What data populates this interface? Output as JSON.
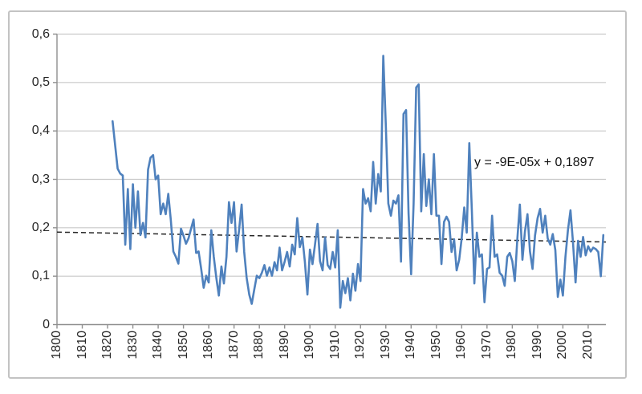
{
  "chart_data": {
    "type": "line",
    "title": "",
    "legend": false,
    "grid": true,
    "x_axis": {
      "min": 1800,
      "max": 2017,
      "tick_step": 10,
      "tick_labels": [
        "1800",
        "1810",
        "1820",
        "1830",
        "1840",
        "1850",
        "1860",
        "1870",
        "1880",
        "1890",
        "1900",
        "1910",
        "1920",
        "1930",
        "1940",
        "1950",
        "1960",
        "1970",
        "1980",
        "1990",
        "2000",
        "2010"
      ]
    },
    "y_axis": {
      "min": 0,
      "max": 0.6,
      "tick_step": 0.1,
      "tick_labels": [
        "0",
        "0,1",
        "0,2",
        "0,3",
        "0,4",
        "0,5",
        "0,6"
      ]
    },
    "series": [
      {
        "name": "",
        "color": "#4F81BD",
        "start_year": 1822,
        "values": [
          0.42,
          0.37,
          0.322,
          0.312,
          0.308,
          0.165,
          0.28,
          0.156,
          0.29,
          0.2,
          0.275,
          0.185,
          0.21,
          0.18,
          0.32,
          0.345,
          0.35,
          0.3,
          0.308,
          0.228,
          0.25,
          0.228,
          0.27,
          0.217,
          0.151,
          0.14,
          0.126,
          0.198,
          0.184,
          0.167,
          0.178,
          0.198,
          0.217,
          0.148,
          0.151,
          0.115,
          0.076,
          0.101,
          0.087,
          0.195,
          0.14,
          0.096,
          0.06,
          0.12,
          0.085,
          0.14,
          0.253,
          0.21,
          0.253,
          0.151,
          0.195,
          0.248,
          0.15,
          0.096,
          0.062,
          0.043,
          0.073,
          0.101,
          0.096,
          0.107,
          0.123,
          0.101,
          0.118,
          0.101,
          0.129,
          0.112,
          0.159,
          0.112,
          0.13,
          0.15,
          0.12,
          0.165,
          0.145,
          0.22,
          0.16,
          0.18,
          0.13,
          0.062,
          0.155,
          0.125,
          0.165,
          0.208,
          0.131,
          0.112,
          0.18,
          0.123,
          0.115,
          0.15,
          0.118,
          0.195,
          0.035,
          0.09,
          0.065,
          0.096,
          0.05,
          0.105,
          0.07,
          0.125,
          0.09,
          0.28,
          0.25,
          0.261,
          0.234,
          0.336,
          0.25,
          0.311,
          0.275,
          0.555,
          0.41,
          0.25,
          0.225,
          0.256,
          0.25,
          0.267,
          0.13,
          0.435,
          0.443,
          0.23,
          0.104,
          0.25,
          0.49,
          0.496,
          0.234,
          0.352,
          0.245,
          0.3,
          0.228,
          0.352,
          0.225,
          0.225,
          0.125,
          0.212,
          0.223,
          0.212,
          0.15,
          0.176,
          0.112,
          0.134,
          0.178,
          0.242,
          0.19,
          0.375,
          0.239,
          0.085,
          0.19,
          0.14,
          0.145,
          0.046,
          0.115,
          0.118,
          0.225,
          0.14,
          0.145,
          0.107,
          0.101,
          0.08,
          0.14,
          0.148,
          0.131,
          0.09,
          0.178,
          0.248,
          0.134,
          0.192,
          0.228,
          0.151,
          0.115,
          0.184,
          0.22,
          0.239,
          0.19,
          0.225,
          0.178,
          0.165,
          0.187,
          0.154,
          0.057,
          0.093,
          0.06,
          0.14,
          0.195,
          0.236,
          0.17,
          0.087,
          0.173,
          0.14,
          0.181,
          0.143,
          0.162,
          0.151,
          0.159,
          0.156,
          0.15,
          0.1,
          0.185
        ]
      }
    ],
    "trendline": {
      "label": "y = -9E-05x + 0,1897",
      "style": "dashed",
      "color": "#262626",
      "points": [
        {
          "year": 1800,
          "value": 0.191
        },
        {
          "year": 2017,
          "value": 0.1706
        }
      ]
    },
    "colors": {
      "line": "#4F81BD",
      "gridline": "#c9c9c9",
      "axis": "#8f8f8f",
      "text": "#262626"
    }
  }
}
